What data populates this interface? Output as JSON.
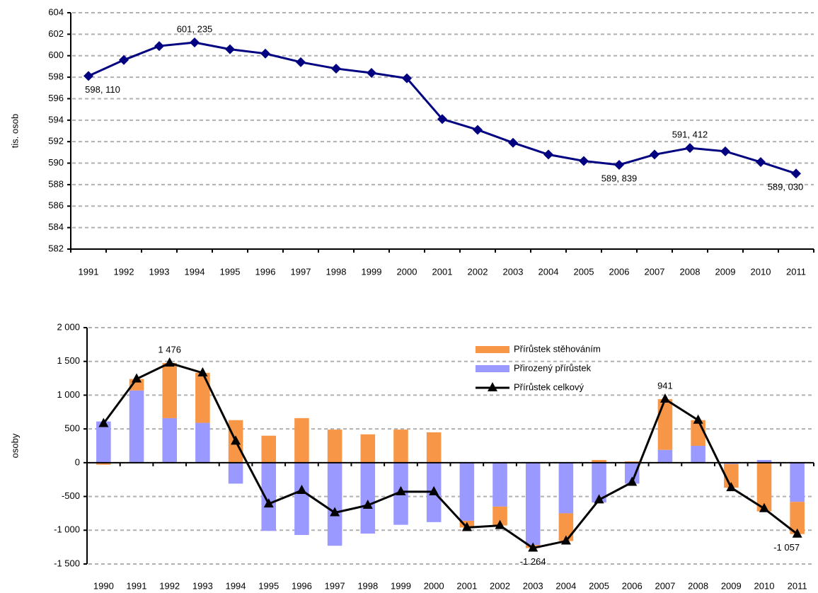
{
  "chart_data": [
    {
      "type": "line",
      "ylabel": "tis. osob",
      "categories": [
        "1991",
        "1992",
        "1993",
        "1994",
        "1995",
        "1996",
        "1997",
        "1998",
        "1999",
        "2000",
        "2001",
        "2002",
        "2003",
        "2004",
        "2005",
        "2006",
        "2007",
        "2008",
        "2009",
        "2010",
        "2011"
      ],
      "series": [
        {
          "color": "#000080",
          "marker": "diamond",
          "values": [
            598.11,
            599.6,
            600.9,
            601.235,
            600.6,
            600.2,
            599.4,
            598.8,
            598.4,
            597.9,
            594.1,
            593.1,
            591.9,
            590.8,
            590.2,
            589.839,
            590.8,
            591.412,
            591.1,
            590.1,
            589.03
          ],
          "value_labels": [
            "598, 110",
            null,
            null,
            "601, 235",
            null,
            null,
            null,
            null,
            null,
            null,
            null,
            null,
            null,
            null,
            null,
            "589, 839",
            null,
            "591, 412",
            null,
            null,
            "589, 030"
          ]
        }
      ],
      "ylim": [
        582,
        604
      ],
      "yticks": [
        582,
        584,
        586,
        588,
        590,
        592,
        594,
        596,
        598,
        600,
        602,
        604
      ],
      "grid": true
    },
    {
      "type": "bar",
      "stacked": true,
      "ylabel": "osoby",
      "legend": "upper center",
      "categories": [
        "1990",
        "1991",
        "1992",
        "1993",
        "1994",
        "1995",
        "1996",
        "1997",
        "1998",
        "1999",
        "2000",
        "2001",
        "2002",
        "2003",
        "2004",
        "2005",
        "2006",
        "2007",
        "2008",
        "2009",
        "2010",
        "2011"
      ],
      "series": [
        {
          "name": "Přirozený přírůstek",
          "color": "#9999ff",
          "values": [
            610,
            1070,
            660,
            590,
            -310,
            -1010,
            -1070,
            -1230,
            -1050,
            -920,
            -880,
            -860,
            -650,
            -1220,
            -750,
            -590,
            -310,
            190,
            250,
            -20,
            40,
            -580
          ]
        },
        {
          "name": "Přírůstek stěhováním",
          "color": "#f79646",
          "values": [
            -30,
            170,
            816,
            740,
            630,
            400,
            660,
            490,
            420,
            490,
            450,
            -100,
            -280,
            -44,
            -410,
            40,
            20,
            751,
            380,
            -350,
            -720,
            -477
          ]
        },
        {
          "name": "Přírůstek celkový",
          "type": "line",
          "color": "#000000",
          "marker": "triangle",
          "values": [
            580,
            1240,
            1476,
            1330,
            320,
            -610,
            -410,
            -740,
            -630,
            -430,
            -430,
            -960,
            -930,
            -1264,
            -1160,
            -550,
            -290,
            941,
            630,
            -370,
            -680,
            -1057
          ],
          "value_labels": [
            null,
            null,
            "1 476",
            null,
            null,
            null,
            null,
            null,
            null,
            null,
            null,
            null,
            null,
            "-1 264",
            null,
            null,
            null,
            "941",
            null,
            null,
            null,
            "-1 057"
          ]
        }
      ],
      "ylim": [
        -1500,
        2000
      ],
      "yticks": [
        {
          "value": -1500,
          "label": "-1 500"
        },
        {
          "value": -1000,
          "label": "-1 000"
        },
        -500,
        0,
        500,
        {
          "value": 1000,
          "label": "1 000"
        },
        {
          "value": 1500,
          "label": "1 500"
        },
        {
          "value": 2000,
          "label": "2 000"
        }
      ],
      "grid": true
    }
  ]
}
